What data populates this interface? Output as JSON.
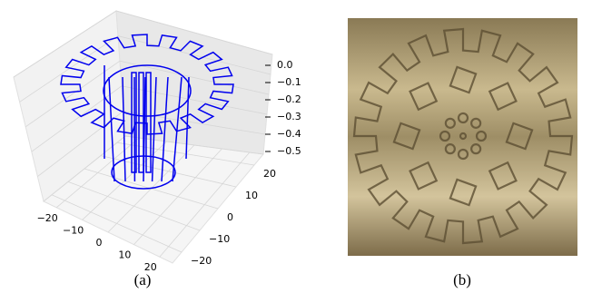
{
  "panels": [
    {
      "caption": "(a)",
      "z_ticks": [
        "0.0",
        "−0.1",
        "−0.2",
        "−0.3",
        "−0.4",
        "−0.5"
      ],
      "x_ticks": [
        "−20",
        "−10",
        "0",
        "10",
        "20"
      ],
      "y_ticks": [
        "20",
        "10",
        "0",
        "−10",
        "−20"
      ]
    },
    {
      "caption": "(b)"
    }
  ]
}
